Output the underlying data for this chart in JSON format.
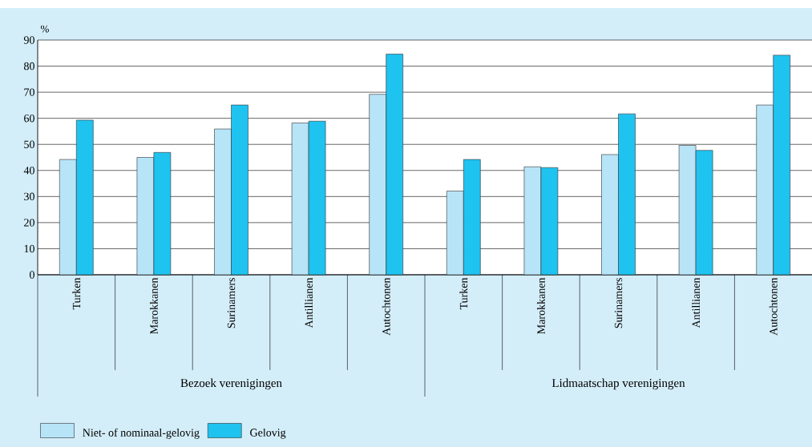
{
  "chart_data": {
    "type": "bar",
    "ylabel": "%",
    "categories": [
      "Turken",
      "Marokkanen",
      "Surinamers",
      "Antillianen",
      "Autochtonen",
      "Turken",
      "Marokkanen",
      "Surinamers",
      "Antillianen",
      "Autochtonen"
    ],
    "series": [
      {
        "name": "Niet- of nominaal-gelovig",
        "color": "#b8e4f8",
        "values": [
          44.2,
          45.0,
          55.9,
          58.2,
          69.2,
          32.1,
          41.4,
          46.1,
          49.6,
          65.1
        ]
      },
      {
        "name": "Gelovig",
        "color": "#1fc3f0",
        "values": [
          59.3,
          46.9,
          65.1,
          58.9,
          84.6,
          44.2,
          41.1,
          61.7,
          47.7,
          84.2
        ]
      }
    ],
    "ylim": [
      0,
      90
    ],
    "yticks": [
      0,
      10,
      20,
      30,
      40,
      50,
      60,
      70,
      80,
      90
    ],
    "grid": "y",
    "legend": "bottom left",
    "annotations": [
      "Bezoek verenigingen",
      "Lidmaatschap verenigingen"
    ]
  }
}
